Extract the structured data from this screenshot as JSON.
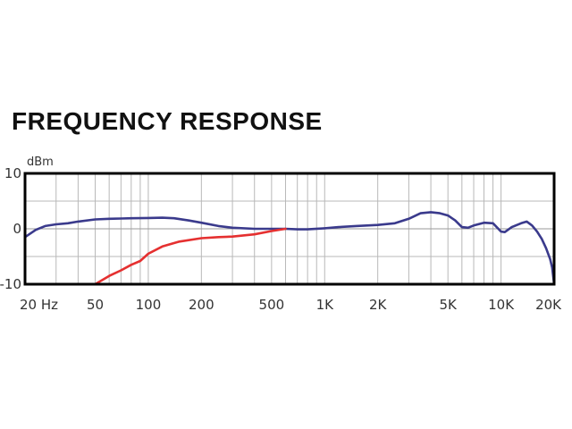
{
  "chart_data": {
    "type": "line",
    "title": "FREQUENCY RESPONSE",
    "ylabel": "dBm",
    "xscale": "log",
    "xlim": [
      20,
      20000
    ],
    "ylim": [
      -10,
      10
    ],
    "grid": true,
    "x_ticks": [
      {
        "value": 20,
        "label": "20 Hz"
      },
      {
        "value": 50,
        "label": "50"
      },
      {
        "value": 100,
        "label": "100"
      },
      {
        "value": 200,
        "label": "200"
      },
      {
        "value": 500,
        "label": "500"
      },
      {
        "value": 1000,
        "label": "1K"
      },
      {
        "value": 2000,
        "label": "2K"
      },
      {
        "value": 5000,
        "label": "5K"
      },
      {
        "value": 10000,
        "label": "10K"
      },
      {
        "value": 20000,
        "label": "20K"
      }
    ],
    "y_ticks": [
      {
        "value": 10,
        "label": "10"
      },
      {
        "value": 0,
        "label": "0"
      },
      {
        "value": -10,
        "label": "-10"
      }
    ],
    "series": [
      {
        "color": "#3a3a8c",
        "points": [
          [
            20,
            -1.5
          ],
          [
            23,
            -0.2
          ],
          [
            26,
            0.5
          ],
          [
            30,
            0.8
          ],
          [
            35,
            1.0
          ],
          [
            40,
            1.3
          ],
          [
            50,
            1.7
          ],
          [
            60,
            1.8
          ],
          [
            70,
            1.85
          ],
          [
            80,
            1.9
          ],
          [
            100,
            1.95
          ],
          [
            120,
            2.0
          ],
          [
            140,
            1.9
          ],
          [
            170,
            1.5
          ],
          [
            200,
            1.1
          ],
          [
            250,
            0.5
          ],
          [
            300,
            0.2
          ],
          [
            400,
            0.0
          ],
          [
            500,
            0.0
          ],
          [
            600,
            0.0
          ],
          [
            700,
            -0.1
          ],
          [
            800,
            -0.1
          ],
          [
            1000,
            0.1
          ],
          [
            1200,
            0.3
          ],
          [
            1500,
            0.5
          ],
          [
            2000,
            0.7
          ],
          [
            2500,
            1.0
          ],
          [
            3000,
            1.8
          ],
          [
            3500,
            2.8
          ],
          [
            4000,
            3.0
          ],
          [
            4500,
            2.8
          ],
          [
            5000,
            2.4
          ],
          [
            5500,
            1.5
          ],
          [
            6000,
            0.3
          ],
          [
            6500,
            0.2
          ],
          [
            7000,
            0.6
          ],
          [
            8000,
            1.1
          ],
          [
            9000,
            1.0
          ],
          [
            10000,
            -0.5
          ],
          [
            10500,
            -0.6
          ],
          [
            11500,
            0.3
          ],
          [
            13000,
            1.0
          ],
          [
            14000,
            1.3
          ],
          [
            15000,
            0.6
          ],
          [
            16000,
            -0.5
          ],
          [
            17000,
            -1.8
          ],
          [
            18000,
            -3.5
          ],
          [
            19000,
            -5.5
          ],
          [
            19500,
            -7.0
          ],
          [
            20000,
            -10.0
          ]
        ]
      },
      {
        "color": "#e53030",
        "points": [
          [
            50,
            -10.0
          ],
          [
            60,
            -8.5
          ],
          [
            70,
            -7.5
          ],
          [
            80,
            -6.5
          ],
          [
            90,
            -5.8
          ],
          [
            100,
            -4.5
          ],
          [
            120,
            -3.2
          ],
          [
            150,
            -2.3
          ],
          [
            200,
            -1.7
          ],
          [
            250,
            -1.5
          ],
          [
            300,
            -1.4
          ],
          [
            400,
            -1.0
          ],
          [
            500,
            -0.4
          ],
          [
            600,
            0.0
          ]
        ]
      }
    ]
  }
}
